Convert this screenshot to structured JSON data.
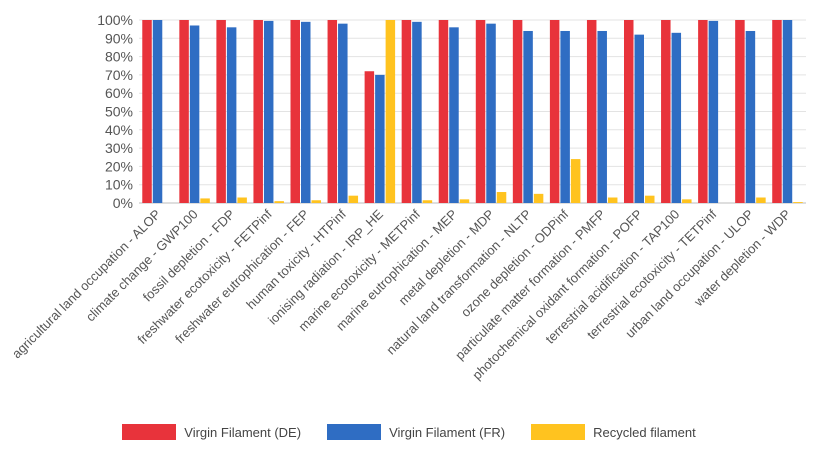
{
  "chart_data": {
    "type": "bar",
    "title": "",
    "xlabel": "",
    "ylabel": "",
    "ylim": [
      0,
      100
    ],
    "yticks": [
      "0%",
      "10%",
      "20%",
      "30%",
      "40%",
      "50%",
      "60%",
      "70%",
      "80%",
      "90%",
      "100%"
    ],
    "grid": true,
    "legend_position": "bottom",
    "categories": [
      "agricultural land occupation - ALOP",
      "climate change - GWP100",
      "fossil depletion - FDP",
      "freshwater ecotoxicity - FETPinf",
      "freshwater eutrophication - FEP",
      "human toxicity - HTPinf",
      "ionising radiation - IRP_HE",
      "marine ecotoxicity - METPinf",
      "marine eutrophication - MEP",
      "metal depletion - MDP",
      "natural land transformation - NLTP",
      "ozone depletion - ODPinf",
      "particulate matter formation - PMFP",
      "photochemical oxidant formation - POFP",
      "terrestrial acidification - TAP100",
      "terrestrial ecotoxicity - TETPinf",
      "urban land occupation - ULOP",
      "water depletion - WDP"
    ],
    "series": [
      {
        "name": "Virgin Filament (DE)",
        "color": "#e8333b",
        "values": [
          100,
          100,
          100,
          100,
          100,
          100,
          72,
          100,
          100,
          100,
          100,
          100,
          100,
          100,
          100,
          100,
          100,
          100
        ]
      },
      {
        "name": "Virgin Filament (FR)",
        "color": "#2f6dc3",
        "values": [
          100,
          97,
          96,
          99.5,
          99,
          98,
          70,
          99,
          96,
          98,
          94,
          94,
          94,
          92,
          93,
          99.5,
          94,
          100
        ]
      },
      {
        "name": "Recycled filament",
        "color": "#ffc31f",
        "values": [
          0,
          2.5,
          3,
          1,
          1.5,
          4,
          100,
          1.5,
          2,
          6,
          5,
          24,
          3,
          4,
          2,
          0,
          3,
          0.5
        ]
      }
    ]
  }
}
